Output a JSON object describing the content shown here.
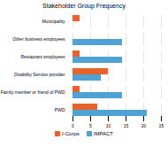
{
  "chart_data": {
    "type": "bar",
    "title": "Stakeholder Group Frequency",
    "orientation": "horizontal",
    "categories": [
      "Municipality",
      "Other business employees",
      "Restaurant employees",
      "Disability Service provider",
      "Family member or friend of PWD",
      "PWD"
    ],
    "series": [
      {
        "name": "I-Corps",
        "color": "#e8622a",
        "values": [
          2,
          0,
          2,
          10,
          2,
          7
        ]
      },
      {
        "name": "IMPACT",
        "color": "#4fa3d4",
        "values": [
          0,
          14,
          14,
          8,
          14,
          21
        ]
      }
    ],
    "xlim": [
      0,
      25
    ],
    "xticks": [
      0,
      5,
      10,
      15,
      20,
      25
    ],
    "grid": true,
    "legend": "bottom"
  }
}
